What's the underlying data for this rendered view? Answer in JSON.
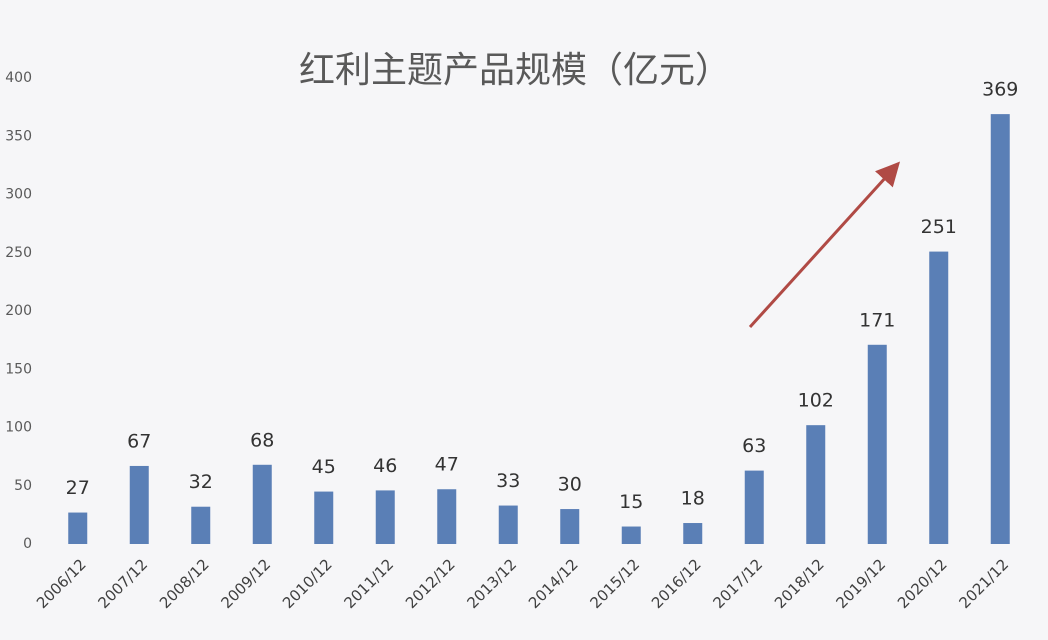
{
  "chart_data": {
    "type": "bar",
    "title": "红利主题产品规模（亿元）",
    "categories": [
      "2006/12",
      "2007/12",
      "2008/12",
      "2009/12",
      "2010/12",
      "2011/12",
      "2012/12",
      "2013/12",
      "2014/12",
      "2015/12",
      "2016/12",
      "2017/12",
      "2018/12",
      "2019/12",
      "2020/12",
      "2021/12"
    ],
    "values": [
      27,
      67,
      32,
      68,
      45,
      46,
      47,
      33,
      30,
      15,
      18,
      63,
      102,
      171,
      251,
      369
    ],
    "color": "#5a7fb6",
    "ylim": [
      0,
      400
    ],
    "yticks": [
      0,
      50,
      100,
      150,
      200,
      250,
      300,
      350,
      400
    ],
    "grid": false
  }
}
